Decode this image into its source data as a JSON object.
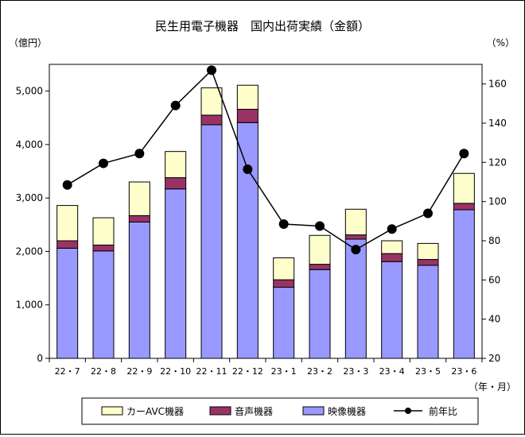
{
  "chart_data": {
    "type": "bar",
    "title": "民生用電子機器　国内出荷実績（金額）",
    "y_left_unit": "（億円）",
    "y_right_unit": "（%）",
    "x_unit": "（年・月）",
    "categories": [
      "22・7",
      "22・8",
      "22・9",
      "22・10",
      "22・11",
      "22・12",
      "23・1",
      "23・2",
      "23・3",
      "23・4",
      "23・5",
      "23・6"
    ],
    "ylim_left": [
      0,
      5500
    ],
    "yticks_left": [
      0,
      1000,
      2000,
      3000,
      4000,
      5000
    ],
    "ytick_labels_left": [
      "0",
      "1,000",
      "2,000",
      "3,000",
      "4,000",
      "5,000"
    ],
    "ylim_right": [
      20,
      170
    ],
    "yticks_right": [
      20,
      40,
      60,
      80,
      100,
      120,
      140,
      160
    ],
    "ytick_labels_right": [
      "20",
      "40",
      "60",
      "80",
      "100",
      "120",
      "140",
      "160"
    ],
    "series": [
      {
        "name": "映像機器",
        "kind": "bar",
        "color": "#9999ff",
        "values": [
          2060,
          2010,
          2550,
          3170,
          4370,
          4410,
          1330,
          1660,
          2230,
          1810,
          1740,
          2780
        ]
      },
      {
        "name": "音声機器",
        "kind": "bar",
        "color": "#993366",
        "values": [
          140,
          110,
          120,
          210,
          180,
          250,
          140,
          100,
          80,
          150,
          110,
          120
        ]
      },
      {
        "name": "カーAVC機器",
        "kind": "bar",
        "color": "#ffffcc",
        "values": [
          660,
          510,
          630,
          490,
          510,
          450,
          410,
          540,
          480,
          240,
          300,
          560
        ]
      },
      {
        "name": "前年比",
        "kind": "line",
        "axis": "right",
        "color": "#000000",
        "values": [
          108.5,
          119.5,
          124.5,
          149,
          167,
          116.5,
          88.5,
          87.5,
          75.5,
          86,
          94,
          124.5
        ]
      }
    ],
    "legend_position": "bottom",
    "legend_order": [
      "カーAVC機器",
      "音声機器",
      "映像機器",
      "前年比"
    ]
  }
}
